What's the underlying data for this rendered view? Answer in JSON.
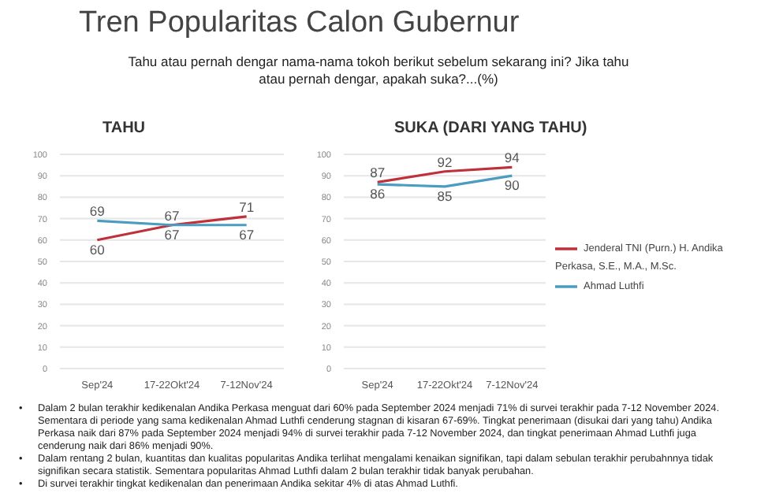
{
  "chart_data": [
    {
      "type": "other",
      "title": "Tren Popularitas Calon Gubernur",
      "subtitle": "Tahu atau pernah dengar nama-nama tokoh berikut sebelum sekarang ini? Jika tahu atau pernah dengar, apakah suka?...(%)"
    },
    {
      "type": "line",
      "title": "TAHU",
      "categories": [
        "Sep'24",
        "17-22Okt'24",
        "7-12Nov'24"
      ],
      "series": [
        {
          "color": "#c0303a",
          "values": [
            60,
            67,
            71
          ]
        },
        {
          "color": "#4a9cc0",
          "values": [
            69,
            67,
            67
          ]
        }
      ],
      "ylim": [
        0,
        100
      ],
      "yticks": [
        0,
        10,
        20,
        30,
        40,
        50,
        60,
        70,
        80,
        90,
        100
      ],
      "grid": "y",
      "data_labels": true,
      "legend": false,
      "marker": "none"
    },
    {
      "type": "line",
      "title": "SUKA (DARI YANG TAHU)",
      "categories": [
        "Sep'24",
        "17-22Okt'24",
        "7-12Nov'24"
      ],
      "series": [
        {
          "name": "Jenderal TNI (Purn.) H. Andika Perkasa, S.E., M.A., M.Sc.",
          "color": "#c0303a",
          "values": [
            87,
            92,
            94
          ]
        },
        {
          "name": "Ahmad Luthfi",
          "color": "#4a9cc0",
          "values": [
            86,
            85,
            90
          ]
        }
      ],
      "ylim": [
        0,
        100
      ],
      "yticks": [
        0,
        10,
        20,
        30,
        40,
        50,
        60,
        70,
        80,
        90,
        100
      ],
      "grid": "y",
      "data_labels": true,
      "legend": "right",
      "marker": "none"
    },
    {
      "type": "other",
      "annotations": [
        "• Dalam 2 bulan terakhir kedikenalan Andika Perkasa menguat dari 60% pada September 2024 menjadi 71% di survei terakhir pada 7-12 November 2024. Sementara di periode yang sama kedikenalan Ahmad Luthfi cenderung stagnan di kisaran 67-69%. Tingkat penerimaan (disukai dari yang tahu) Andika Perkasa naik dari 87% pada September 2024 menjadi 94% di survei terakhir pada 7-12 November 2024, dan tingkat penerimaan Ahmad Luthfi juga cenderung naik dari 86% menjadi 90%.",
        "• Dalam rentang 2 bulan, kuantitas dan kualitas popularitas Andika terlihat mengalami kenaikan signifikan, tapi dalam sebulan terakhir perubahnnya tidak signifikan secara statistik. Sementara popularitas Ahmad Luthfi dalam 2 bulan terakhir tidak banyak perubahan.",
        "• Di survei terakhir tingkat kedikenalan dan penerimaan Andika sekitar 4% di atas Ahmad Luthfi."
      ]
    }
  ]
}
